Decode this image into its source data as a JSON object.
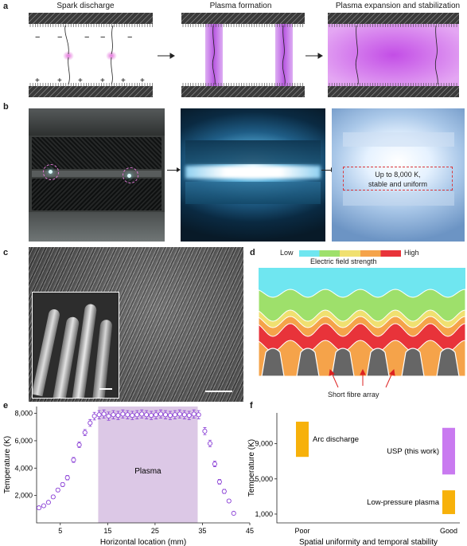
{
  "panel_a": {
    "label": "a",
    "titles": [
      "Spark discharge",
      "Plasma formation",
      "Plasma expansion and stabilization"
    ],
    "minus": "−",
    "plus": "+"
  },
  "panel_b": {
    "label": "b",
    "annotation_line1": "Up to 8,000 K,",
    "annotation_line2": "stable and uniform"
  },
  "panel_c": {
    "label": "c"
  },
  "panel_d": {
    "label": "d",
    "low": "Low",
    "high": "High",
    "field_label": "Electric field strength",
    "fibre_label": "Short fibre array",
    "gradient_colors": [
      "#6fe6f0",
      "#9ee06b",
      "#f0e070",
      "#f5a34a",
      "#e8333a"
    ]
  },
  "colors": {
    "plasma": "#c06ae8",
    "marker": "#8a3fd6",
    "plasma_band": "#dcc8e6",
    "arc_bar": "#f7b10a",
    "usp_bar": "#c97af0"
  },
  "panel_e": {
    "label": "e",
    "band_label": "Plasma",
    "chart_data": {
      "type": "scatter",
      "xlabel": "Horizontal location (mm)",
      "ylabel": "Temperature (K)",
      "xlim": [
        0,
        45
      ],
      "ylim": [
        0,
        8500
      ],
      "xticks": [
        5,
        15,
        25,
        35,
        45
      ],
      "yticks": [
        2000,
        4000,
        6000,
        8000
      ],
      "ytick_labels": [
        "2,000",
        "4,000",
        "6,000",
        "8,000"
      ],
      "shaded_region": [
        13,
        34
      ],
      "x": [
        0.5,
        1.5,
        2.5,
        3.5,
        4.5,
        5.5,
        6.5,
        7.8,
        9,
        10.2,
        11.3,
        12.2,
        13.2,
        14.2,
        15.2,
        16.2,
        17.2,
        18.2,
        19.2,
        20.2,
        21.2,
        22.2,
        23.2,
        24.2,
        25.2,
        26.2,
        27.2,
        28.2,
        29.2,
        30.2,
        31.2,
        32.2,
        33.2,
        34.2,
        35.5,
        36.6,
        37.6,
        38.6,
        39.6,
        40.6,
        41.6
      ],
      "y": [
        1100,
        1250,
        1500,
        1900,
        2400,
        2800,
        3300,
        4600,
        5700,
        6600,
        7300,
        7800,
        7900,
        7950,
        7800,
        7900,
        7850,
        7950,
        7900,
        7850,
        7900,
        7950,
        7900,
        7850,
        7900,
        7950,
        7900,
        7850,
        7900,
        7950,
        7900,
        7850,
        7950,
        7900,
        6700,
        5800,
        4300,
        3000,
        2300,
        1600,
        700
      ],
      "error": [
        100,
        100,
        110,
        120,
        130,
        140,
        160,
        180,
        200,
        220,
        250,
        280,
        300,
        300,
        300,
        300,
        300,
        300,
        300,
        300,
        300,
        300,
        300,
        300,
        300,
        300,
        300,
        300,
        300,
        300,
        300,
        300,
        300,
        300,
        260,
        240,
        200,
        170,
        150,
        120,
        100
      ]
    }
  },
  "panel_f": {
    "label": "f",
    "chart_data": {
      "type": "bar",
      "xlabel": "Spatial uniformity and temporal stability",
      "ylabel": "Temperature (K)",
      "categories": [
        "Poor",
        "Good"
      ],
      "yticks": [
        1000,
        5000,
        9000
      ],
      "ytick_labels": [
        "1,000",
        "5,000",
        "9,000"
      ],
      "ylim": [
        0,
        12500
      ],
      "bars": [
        {
          "name": "Arc discharge",
          "category": "Poor",
          "low": 7500,
          "high": 11500
        },
        {
          "name": "USP (this work)",
          "category": "Good",
          "low": 5500,
          "high": 10800
        },
        {
          "name": "Low-pressure plasma",
          "category": "Good",
          "low": 1000,
          "high": 3700
        }
      ]
    }
  }
}
